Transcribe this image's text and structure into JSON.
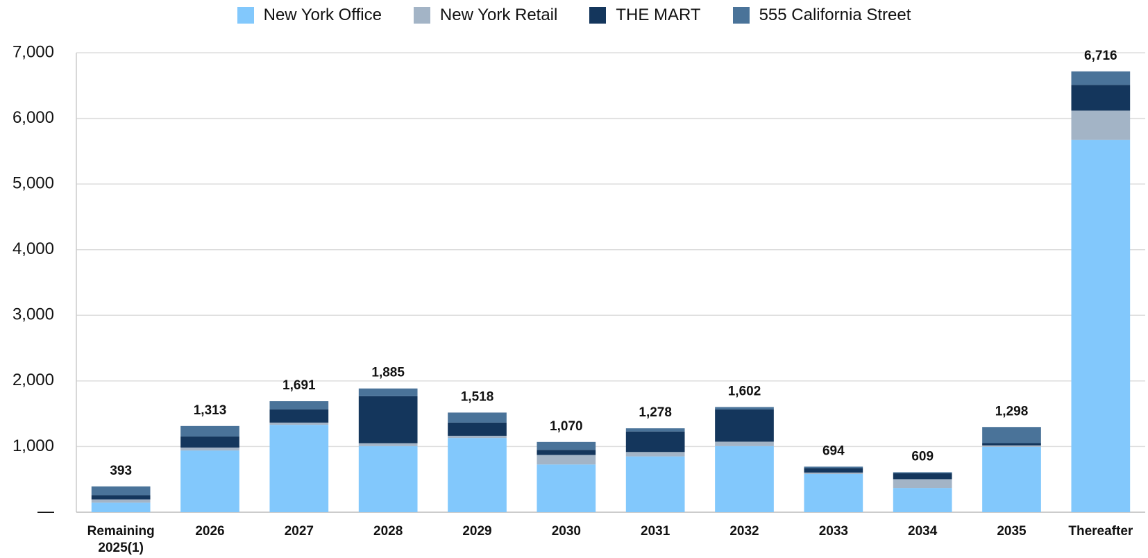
{
  "chart_data": {
    "type": "stacked_bar",
    "categories": [
      "Remaining 2025(1)",
      "2026",
      "2027",
      "2028",
      "2029",
      "2030",
      "2031",
      "2032",
      "2033",
      "2034",
      "2035",
      "Thereafter"
    ],
    "series": [
      {
        "name": "New York Office",
        "color": "#82c8fc",
        "values": [
          145,
          940,
          1331,
          1007,
          1130,
          727,
          850,
          1007,
          582,
          369,
          996,
          5671
        ]
      },
      {
        "name": "New York Retail",
        "color": "#a3b4c6",
        "values": [
          50,
          45,
          34,
          45,
          34,
          145,
          67,
          67,
          22,
          134,
          22,
          447
        ]
      },
      {
        "name": "THE MART",
        "color": "#14365c",
        "values": [
          65,
          168,
          201,
          716,
          201,
          78,
          313,
          492,
          67,
          89,
          34,
          392
        ]
      },
      {
        "name": "555 California Street",
        "color": "#4a7399",
        "values": [
          133,
          160,
          125,
          117,
          153,
          120,
          48,
          36,
          23,
          17,
          246,
          206
        ]
      }
    ],
    "totals": [
      393,
      1313,
      1691,
      1885,
      1518,
      1070,
      1278,
      1602,
      694,
      609,
      1298,
      6716
    ],
    "total_labels": [
      "393",
      "1,313",
      "1,691",
      "1,885",
      "1,518",
      "1,070",
      "1,278",
      "1,602",
      "694",
      "609",
      "1,298",
      "6,716"
    ],
    "ylim": [
      0,
      7000
    ],
    "yticks": [
      {
        "value": 0,
        "label": "—"
      },
      {
        "value": 1000,
        "label": "1,000"
      },
      {
        "value": 2000,
        "label": "2,000"
      },
      {
        "value": 3000,
        "label": "3,000"
      },
      {
        "value": 4000,
        "label": "4,000"
      },
      {
        "value": 5000,
        "label": "5,000"
      },
      {
        "value": 6000,
        "label": "6,000"
      },
      {
        "value": 7000,
        "label": "7,000"
      }
    ],
    "grid": true,
    "legend": "top"
  }
}
